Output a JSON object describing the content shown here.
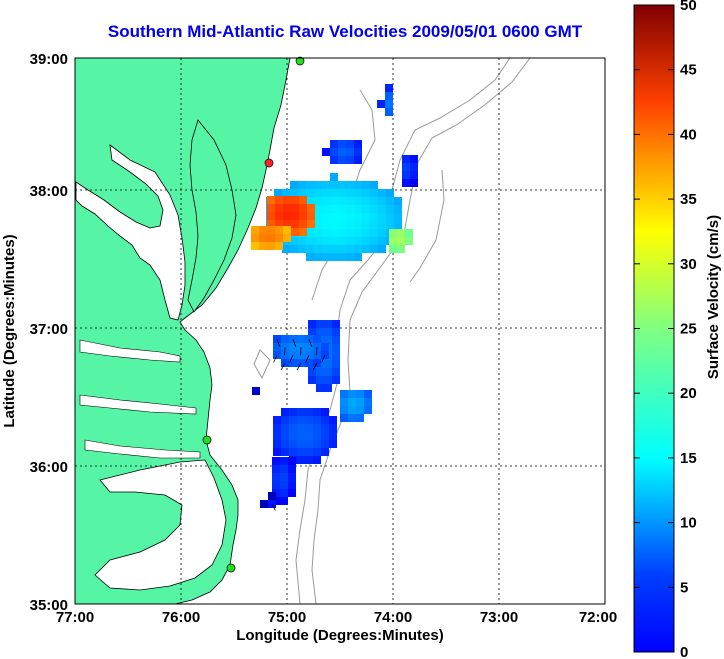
{
  "title": "Southern Mid-Atlantic Raw Velocities 2009/05/01 0600 GMT",
  "xaxis": {
    "label": "Longitude (Degrees:Minutes)",
    "ticks": [
      "77:00",
      "76:00",
      "75:00",
      "74:00",
      "73:00",
      "72:00"
    ]
  },
  "yaxis": {
    "label": "Latitude (Degrees:Minutes)",
    "ticks": [
      "39:00",
      "38:00",
      "37:00",
      "36:00",
      "35:00"
    ]
  },
  "colorbar": {
    "label": "Surface Velocity (cm/s)",
    "ticks": [
      "50",
      "45",
      "40",
      "35",
      "30",
      "25",
      "20",
      "15",
      "10",
      "5",
      "0"
    ],
    "range": [
      0,
      50
    ],
    "colormap": "jet"
  },
  "colors": {
    "land": "#55f5a5",
    "coastline": "#000000",
    "bathymetry": "#999999",
    "title": "#0000ee",
    "station": "#22dd22",
    "station_highlight": "#ff2222"
  }
}
